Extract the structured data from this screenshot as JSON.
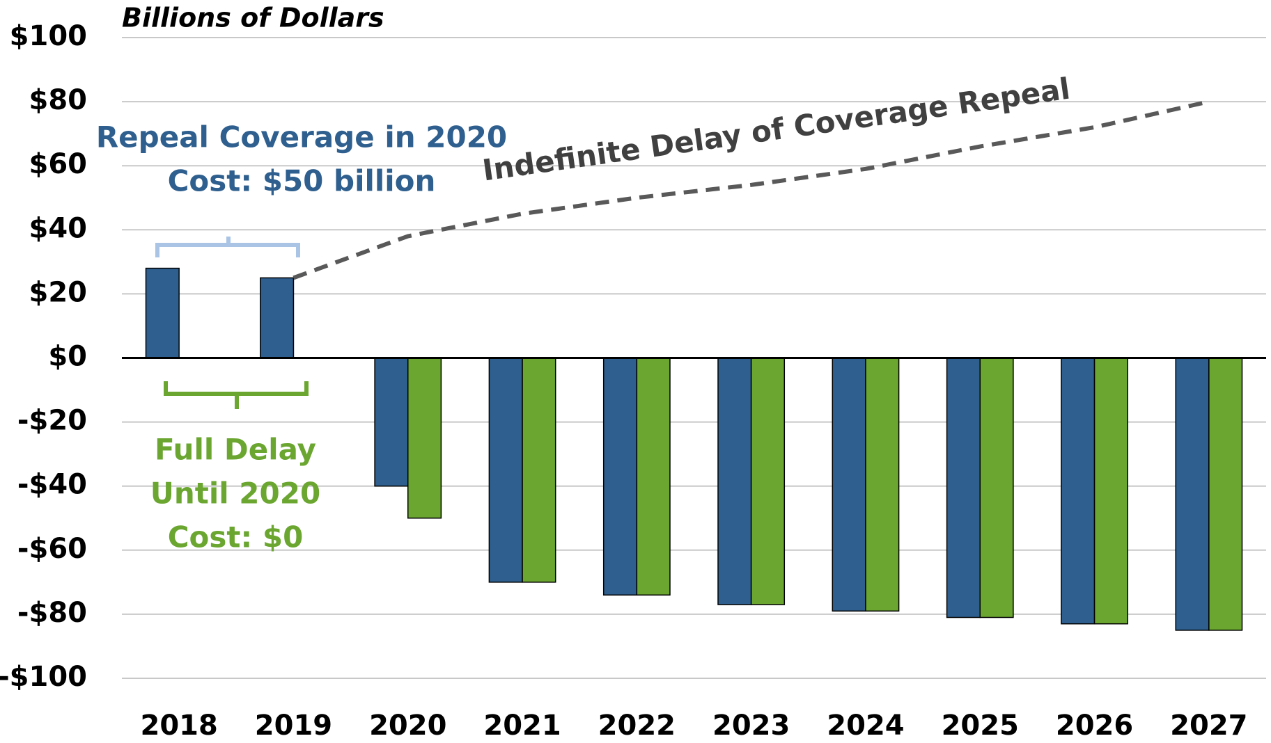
{
  "chart_data": {
    "type": "bar",
    "axis_title": "Billions of Dollars",
    "categories": [
      "2018",
      "2019",
      "2020",
      "2021",
      "2022",
      "2023",
      "2024",
      "2025",
      "2026",
      "2027"
    ],
    "series": [
      {
        "color": "#2e5f8e",
        "values": [
          28,
          25,
          -40,
          -70,
          -74,
          -77,
          -79,
          -81,
          -83,
          -85
        ]
      },
      {
        "color": "#6aa630",
        "values": [
          null,
          null,
          -50,
          -70,
          -74,
          -77,
          -79,
          -81,
          -83,
          -85
        ]
      }
    ],
    "line": {
      "name": "Indefinite Delay of Coverage Repeal",
      "color": "#595959",
      "values": [
        null,
        25,
        38,
        45,
        50,
        54,
        59,
        66,
        72,
        80
      ]
    },
    "annotations": [
      {
        "color": "#2e5f8e",
        "lines": [
          "Repeal Coverage in 2020",
          "Cost: $50 billion"
        ]
      },
      {
        "color": "#6aa630",
        "lines": [
          "Full Delay",
          "Until 2020",
          "Cost: $0"
        ]
      }
    ],
    "ylim": [
      -100,
      100
    ],
    "yticks": [
      {
        "value": -100,
        "label": "-$100"
      },
      {
        "value": -80,
        "label": "-$80"
      },
      {
        "value": -60,
        "label": "-$60"
      },
      {
        "value": -40,
        "label": "-$40"
      },
      {
        "value": -20,
        "label": "-$20"
      },
      {
        "value": 0,
        "label": "$0"
      },
      {
        "value": 20,
        "label": "$20"
      },
      {
        "value": 40,
        "label": "$40"
      },
      {
        "value": 60,
        "label": "$60"
      },
      {
        "value": 80,
        "label": "$80"
      },
      {
        "value": 100,
        "label": "$100"
      }
    ],
    "grid": true
  }
}
